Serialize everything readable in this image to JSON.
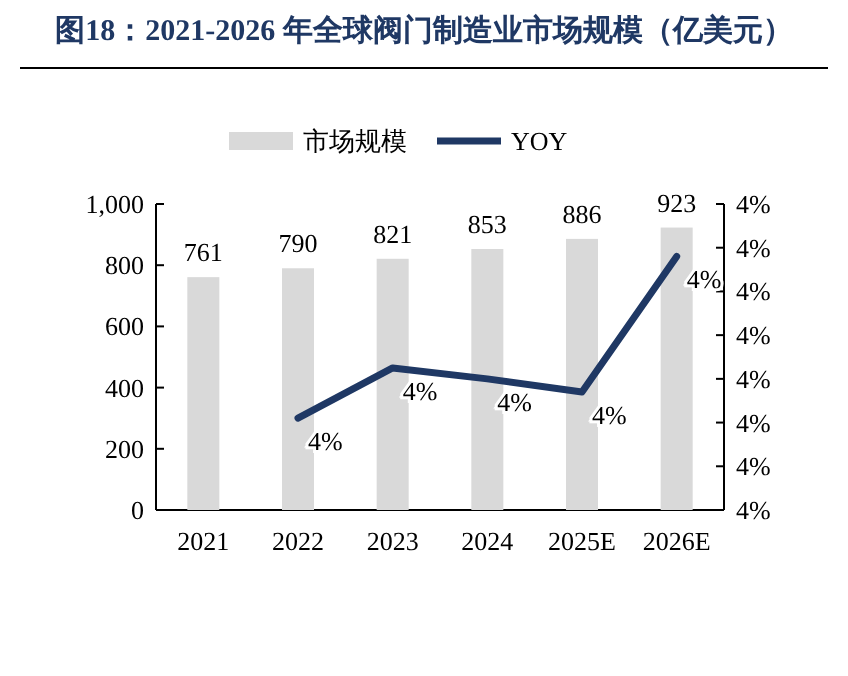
{
  "chart_data": {
    "type": "bar",
    "title": "图18：2021-2026 年全球阀门制造业市场规模（亿美元）",
    "categories": [
      "2021",
      "2022",
      "2023",
      "2024",
      "2025E",
      "2026E"
    ],
    "ylim": [
      0,
      1000
    ],
    "yticks": [
      0,
      200,
      400,
      600,
      800,
      {
        "value": 1000,
        "label": "1,000"
      }
    ],
    "y2lim": [
      3.6,
      4.3
    ],
    "y2ticks": [
      {
        "value": 3.6,
        "label": "4%"
      },
      {
        "value": 3.7,
        "label": "4%"
      },
      {
        "value": 3.8,
        "label": "4%"
      },
      {
        "value": 3.9,
        "label": "4%"
      },
      {
        "value": 4.0,
        "label": "4%"
      },
      {
        "value": 4.1,
        "label": "4%"
      },
      {
        "value": 4.2,
        "label": "4%"
      },
      {
        "value": 4.3,
        "label": "4%"
      }
    ],
    "legend": "top",
    "data_labels": true,
    "series": [
      {
        "name": "市场规模",
        "color": "#d9d9d9",
        "values": [
          761,
          790,
          821,
          853,
          886,
          923
        ]
      },
      {
        "name": "YOY",
        "type": "line",
        "axis": "y2",
        "color": "#1f3864",
        "values": [
          null,
          3.81,
          3.925,
          3.9,
          3.87,
          4.18
        ],
        "value_labels": [
          null,
          "4%",
          "4%",
          "4%",
          "4%",
          "4%"
        ]
      }
    ]
  }
}
